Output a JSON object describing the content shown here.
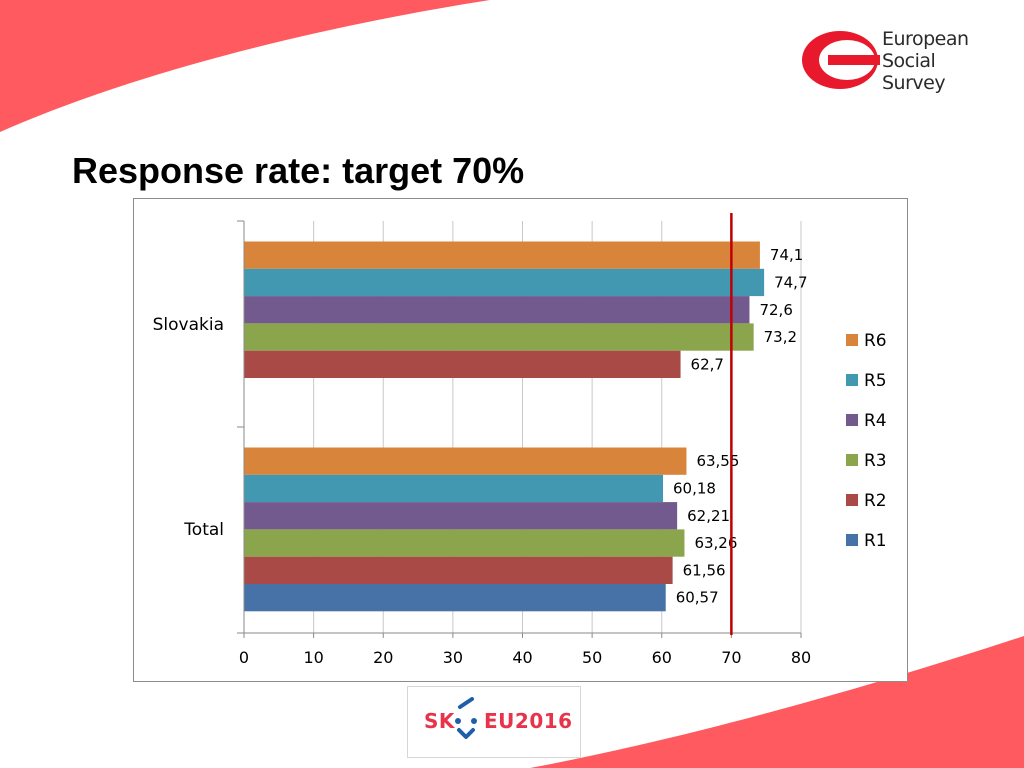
{
  "slide": {
    "title": "Response rate: target 70%"
  },
  "logo": {
    "lines": [
      "European",
      "Social",
      "Survey"
    ],
    "color": "#e8192c"
  },
  "footer_logo": {
    "left": "SK",
    "right": "EU2016",
    "color": "#e8334a",
    "accent": "#1f5fa8"
  },
  "chart_data": {
    "type": "bar",
    "orientation": "horizontal",
    "categories": [
      "Slovakia",
      "Total"
    ],
    "series": [
      {
        "name": "R6",
        "color": "#d9843b",
        "values": [
          74.1,
          63.55
        ],
        "labels": [
          "74,1",
          "63,55"
        ]
      },
      {
        "name": "R5",
        "color": "#4198b0",
        "values": [
          74.7,
          60.18
        ],
        "labels": [
          "74,7",
          "60,18"
        ]
      },
      {
        "name": "R4",
        "color": "#735a8e",
        "values": [
          72.6,
          62.21
        ],
        "labels": [
          "72,6",
          "62,21"
        ]
      },
      {
        "name": "R3",
        "color": "#8ba54d",
        "values": [
          73.2,
          63.26
        ],
        "labels": [
          "73,2",
          "63,26"
        ]
      },
      {
        "name": "R2",
        "color": "#aa4a46",
        "values": [
          62.7,
          61.56
        ],
        "labels": [
          "62,7",
          "61,56"
        ]
      },
      {
        "name": "R1",
        "color": "#4672a8",
        "values": [
          null,
          60.57
        ],
        "labels": [
          null,
          "60,57"
        ]
      }
    ],
    "xlim": [
      0,
      80
    ],
    "xticks": [
      0,
      10,
      20,
      30,
      40,
      50,
      60,
      70,
      80
    ],
    "target_line": {
      "value": 70,
      "color": "#c00000"
    },
    "grid": true,
    "legend": "right"
  }
}
